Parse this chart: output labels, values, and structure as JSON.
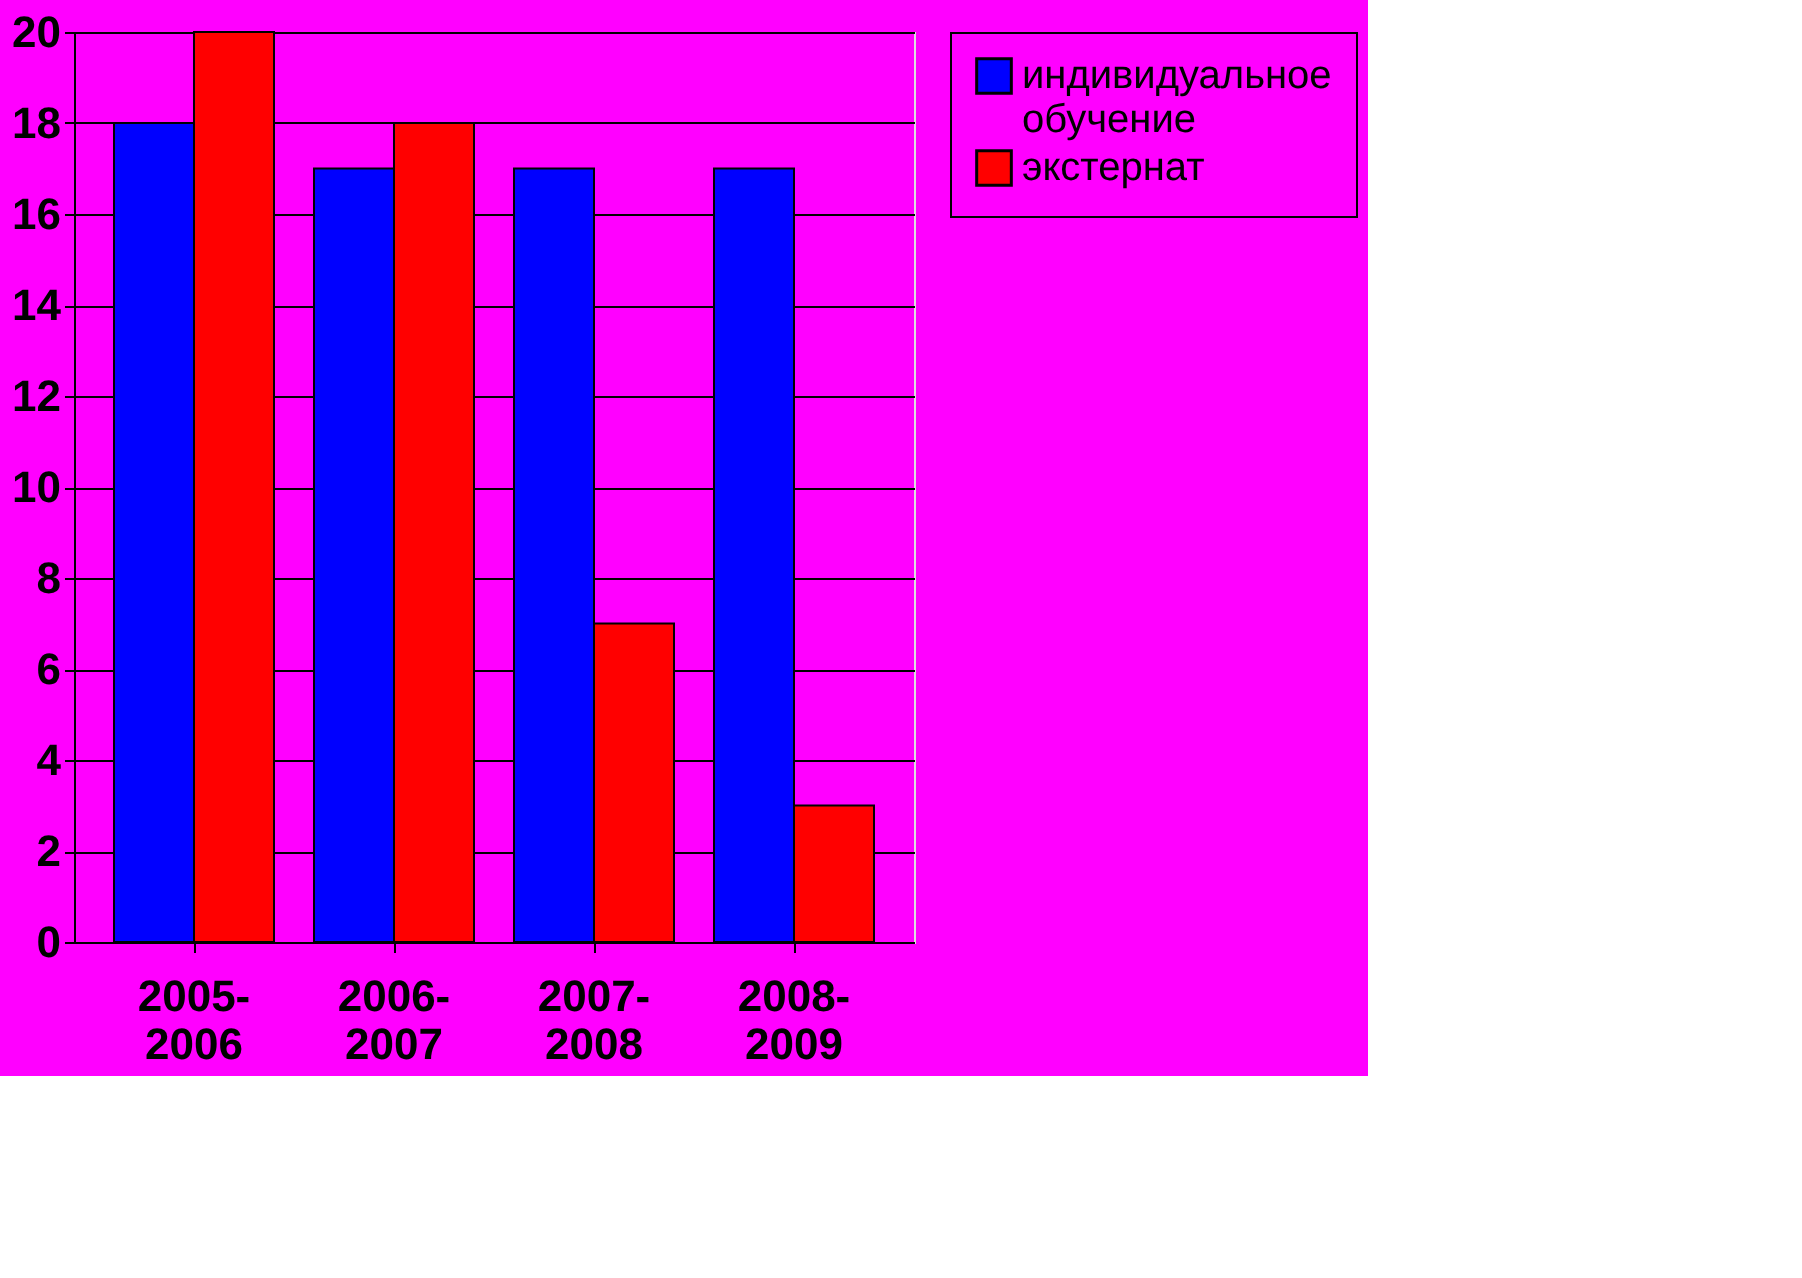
{
  "chart_data": {
    "type": "bar",
    "categories": [
      "2005-2006",
      "2006-2007",
      "2007-2008",
      "2008-2009"
    ],
    "series": [
      {
        "name": "индивидуальное обучение",
        "color": "#0000ff",
        "values": [
          18,
          17,
          17,
          17
        ]
      },
      {
        "name": "экстернат",
        "color": "#ff0000",
        "values": [
          20,
          18,
          7,
          3
        ]
      }
    ],
    "ylim": [
      0,
      20
    ],
    "yticks": [
      0,
      2,
      4,
      6,
      8,
      10,
      12,
      14,
      16,
      18,
      20
    ],
    "grid": "y",
    "legend": "right"
  }
}
